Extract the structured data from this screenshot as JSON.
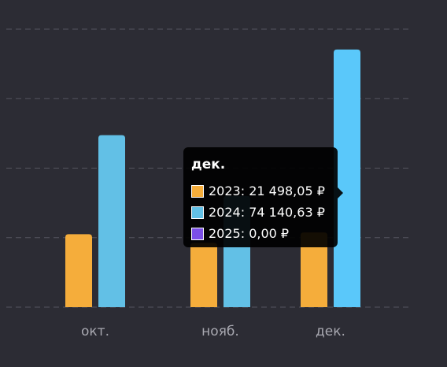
{
  "chart_data": {
    "type": "bar",
    "title": "",
    "xlabel": "",
    "ylabel": "",
    "categories": [
      "окт.",
      "нояб.",
      "дек."
    ],
    "series": [
      {
        "name": "2023",
        "color": "#f5ad3b",
        "values": [
          21000,
          18500,
          21498.05
        ]
      },
      {
        "name": "2024",
        "color": "#62c0e6",
        "values": [
          49500,
          32000,
          74140.63
        ]
      },
      {
        "name": "2025",
        "color": "#7b4fe8",
        "values": [
          0,
          0,
          0
        ]
      }
    ],
    "ylim": [
      0,
      80000
    ],
    "grid": true,
    "grid_values": [
      0,
      20000,
      40000,
      60000,
      80000
    ],
    "highlight_series_color": "#5ac8fa",
    "highlight_category": "дек."
  },
  "tooltip": {
    "title": "дек.",
    "rows": [
      {
        "label": "2023: 21 498,05 ₽",
        "color": "#f5ad3b"
      },
      {
        "label": "2024: 74 140,63 ₽",
        "color": "#62c0e6"
      },
      {
        "label": "2025: 0,00 ₽",
        "color": "#7b4fe8"
      }
    ]
  }
}
